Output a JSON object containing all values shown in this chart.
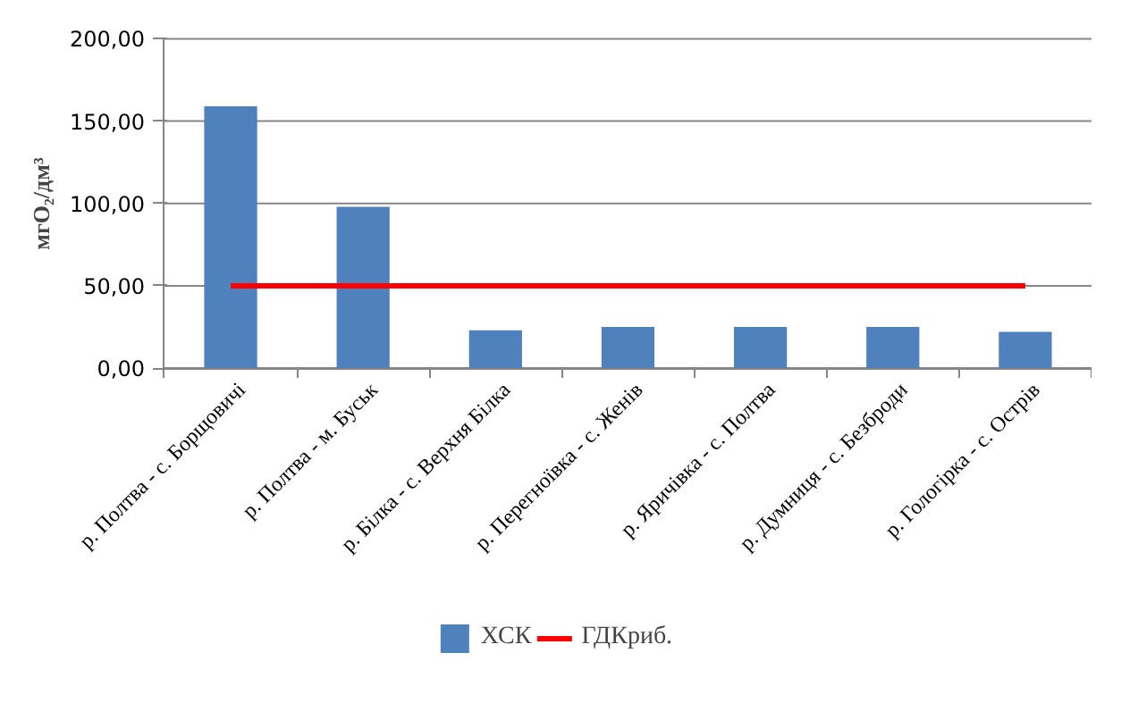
{
  "chart_data": {
    "type": "bar",
    "ylabel": "мгО₂/дм³",
    "categories": [
      "р. Полтва - с. Борщовичі",
      "р. Полтва - м. Буськ",
      "р. Білка - с. Верхня Білка",
      "р. Перегноївка - с. Женів",
      "р. Яричівка - с. Полтва",
      "р. Думниця - с. Безброди",
      "р. Гологірка - с. Острів"
    ],
    "series": [
      {
        "name": "ХСК",
        "color": "#4f81bd",
        "values": [
          159,
          98,
          23,
          25,
          25,
          25,
          22
        ]
      },
      {
        "name": "ГДКриб.",
        "type": "line",
        "color": "#ff0000",
        "values": [
          50,
          50,
          50,
          50,
          50,
          50,
          50
        ]
      }
    ],
    "ylim": [
      0,
      200
    ],
    "yticks": [
      {
        "value": 0,
        "label": "0,00"
      },
      {
        "value": 50,
        "label": "50,00"
      },
      {
        "value": 100,
        "label": "100,00"
      },
      {
        "value": 150,
        "label": "150,00"
      },
      {
        "value": 200,
        "label": "200,00"
      }
    ],
    "grid": "y",
    "legend": "bottom"
  }
}
